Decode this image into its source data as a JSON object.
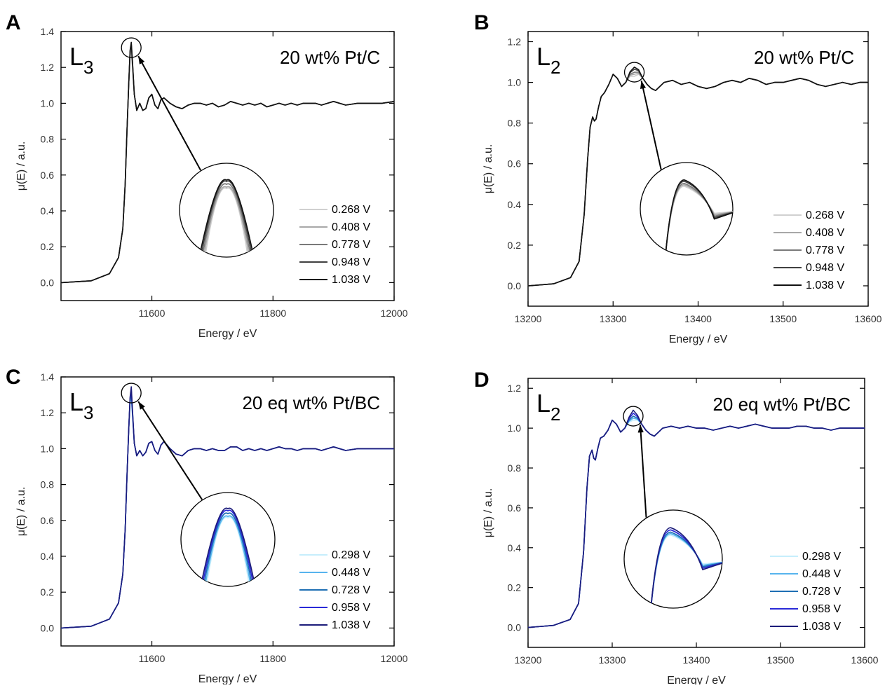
{
  "chart_data": [
    {
      "panel": "A",
      "type": "line",
      "edge_label": "L3",
      "sample_label": "20 wt% Pt/C",
      "xlabel": "Energy / eV",
      "ylabel": "μ(E) / a.u.",
      "xlim": [
        11450,
        12000
      ],
      "ylim": [
        -0.1,
        1.4
      ],
      "xticks": [
        11600,
        11800,
        12000
      ],
      "yticks": [
        0.0,
        0.2,
        0.4,
        0.6,
        0.8,
        1.0,
        1.2,
        1.4
      ],
      "legend_position": "lower-right",
      "series": [
        {
          "name": "0.268 V",
          "color": "#d0d0d0"
        },
        {
          "name": "0.408 V",
          "color": "#a8a8a8"
        },
        {
          "name": "0.778 V",
          "color": "#7a7a7a"
        },
        {
          "name": "0.948 V",
          "color": "#404040"
        },
        {
          "name": "1.038 V",
          "color": "#111111"
        }
      ],
      "x": [
        11450,
        11500,
        11530,
        11545,
        11552,
        11556,
        11559,
        11562,
        11564,
        11566,
        11568,
        11571,
        11575,
        11580,
        11585,
        11590,
        11595,
        11600,
        11605,
        11610,
        11615,
        11620,
        11630,
        11640,
        11650,
        11660,
        11670,
        11680,
        11690,
        11700,
        11710,
        11720,
        11730,
        11740,
        11750,
        11760,
        11770,
        11780,
        11790,
        11800,
        11810,
        11820,
        11830,
        11840,
        11850,
        11860,
        11870,
        11880,
        11890,
        11900,
        11920,
        11940,
        11960,
        11980,
        12000
      ],
      "y": [
        0.0,
        0.01,
        0.05,
        0.14,
        0.3,
        0.55,
        0.85,
        1.12,
        1.28,
        1.31,
        1.22,
        1.05,
        0.96,
        1.0,
        0.96,
        0.97,
        1.03,
        1.05,
        0.99,
        0.97,
        1.02,
        1.03,
        1.0,
        0.98,
        0.97,
        0.99,
        1.0,
        1.0,
        0.99,
        1.0,
        0.98,
        0.99,
        1.01,
        1.0,
        0.99,
        1.0,
        0.99,
        1.0,
        0.98,
        0.99,
        1.0,
        0.99,
        1.0,
        0.99,
        1.0,
        1.0,
        1.0,
        0.99,
        1.0,
        1.01,
        0.99,
        1.0,
        1.0,
        1.0,
        1.01
      ],
      "peak_spread": [
        -0.03,
        -0.02,
        0.0,
        0.02,
        0.03
      ],
      "inset": "zoomed view of white-line peak"
    },
    {
      "panel": "B",
      "type": "line",
      "edge_label": "L2",
      "sample_label": "20 wt% Pt/C",
      "xlabel": "Energy / eV",
      "ylabel": "μ(E) / a.u.",
      "xlim": [
        13200,
        13600
      ],
      "ylim": [
        -0.1,
        1.25
      ],
      "xticks": [
        13200,
        13300,
        13400,
        13500,
        13600
      ],
      "yticks": [
        0.0,
        0.2,
        0.4,
        0.6,
        0.8,
        1.0,
        1.2
      ],
      "legend_position": "lower-right",
      "series": [
        {
          "name": "0.268 V",
          "color": "#d0d0d0"
        },
        {
          "name": "0.408 V",
          "color": "#a8a8a8"
        },
        {
          "name": "0.778 V",
          "color": "#7a7a7a"
        },
        {
          "name": "0.948 V",
          "color": "#404040"
        },
        {
          "name": "1.038 V",
          "color": "#111111"
        }
      ],
      "x": [
        13200,
        13230,
        13250,
        13260,
        13266,
        13270,
        13273,
        13276,
        13278,
        13280,
        13283,
        13286,
        13290,
        13295,
        13300,
        13305,
        13310,
        13315,
        13320,
        13325,
        13330,
        13335,
        13340,
        13345,
        13350,
        13355,
        13360,
        13370,
        13380,
        13390,
        13400,
        13410,
        13420,
        13430,
        13440,
        13450,
        13460,
        13470,
        13480,
        13490,
        13500,
        13510,
        13520,
        13530,
        13540,
        13550,
        13560,
        13570,
        13580,
        13590,
        13600
      ],
      "y": [
        0.0,
        0.01,
        0.04,
        0.12,
        0.35,
        0.62,
        0.78,
        0.83,
        0.81,
        0.82,
        0.88,
        0.93,
        0.95,
        0.99,
        1.04,
        1.02,
        0.98,
        1.0,
        1.04,
        1.05,
        1.05,
        1.02,
        0.99,
        0.97,
        0.96,
        0.98,
        1.0,
        1.01,
        0.99,
        1.0,
        0.98,
        0.97,
        0.98,
        1.0,
        1.01,
        1.0,
        1.02,
        1.01,
        0.99,
        1.0,
        1.0,
        1.01,
        1.02,
        1.01,
        0.99,
        0.98,
        0.99,
        1.0,
        0.99,
        1.0,
        1.0
      ],
      "peak_spread": [
        -0.02,
        -0.01,
        0.0,
        0.015,
        0.025
      ],
      "inset": "zoomed view of white-line peak"
    },
    {
      "panel": "C",
      "type": "line",
      "edge_label": "L3",
      "sample_label": "20 eq wt% Pt/BC",
      "xlabel": "Energy / eV",
      "ylabel": "μ(E) / a.u.",
      "xlim": [
        11450,
        12000
      ],
      "ylim": [
        -0.1,
        1.4
      ],
      "xticks": [
        11600,
        11800,
        12000
      ],
      "yticks": [
        0.0,
        0.2,
        0.4,
        0.6,
        0.8,
        1.0,
        1.2,
        1.4
      ],
      "legend_position": "lower-right",
      "series": [
        {
          "name": "0.298 V",
          "color": "#c6eefc"
        },
        {
          "name": "0.448 V",
          "color": "#57b4ee"
        },
        {
          "name": "0.728 V",
          "color": "#1e6fb4"
        },
        {
          "name": "0.958 V",
          "color": "#2a2ad8"
        },
        {
          "name": "1.038 V",
          "color": "#1c1c7a"
        }
      ],
      "x": [
        11450,
        11500,
        11530,
        11545,
        11552,
        11556,
        11559,
        11562,
        11564,
        11566,
        11568,
        11571,
        11575,
        11580,
        11585,
        11590,
        11595,
        11600,
        11605,
        11610,
        11615,
        11620,
        11630,
        11640,
        11650,
        11660,
        11670,
        11680,
        11690,
        11700,
        11710,
        11720,
        11730,
        11740,
        11750,
        11760,
        11770,
        11780,
        11790,
        11800,
        11810,
        11820,
        11830,
        11840,
        11850,
        11860,
        11870,
        11880,
        11890,
        11900,
        11920,
        11940,
        11960,
        11980,
        12000
      ],
      "y": [
        0.0,
        0.01,
        0.05,
        0.14,
        0.3,
        0.55,
        0.85,
        1.12,
        1.27,
        1.31,
        1.2,
        1.03,
        0.96,
        0.99,
        0.96,
        0.98,
        1.03,
        1.04,
        0.99,
        0.97,
        1.02,
        1.04,
        1.0,
        0.97,
        0.96,
        0.99,
        1.0,
        1.0,
        0.99,
        1.0,
        0.99,
        0.99,
        1.01,
        1.01,
        0.99,
        1.0,
        0.99,
        1.0,
        0.99,
        1.0,
        1.01,
        1.0,
        1.0,
        0.99,
        1.0,
        1.0,
        1.0,
        0.99,
        1.0,
        1.01,
        0.99,
        1.0,
        1.0,
        1.0,
        1.0
      ],
      "peak_spread": [
        -0.03,
        -0.02,
        0.0,
        0.02,
        0.035
      ],
      "inset": "zoomed view of white-line peak"
    },
    {
      "panel": "D",
      "type": "line",
      "edge_label": "L2",
      "sample_label": "20 eq wt% Pt/BC",
      "xlabel": "Energy / eV",
      "ylabel": "μ(E) / a.u.",
      "xlim": [
        13200,
        13600
      ],
      "ylim": [
        -0.1,
        1.25
      ],
      "xticks": [
        13200,
        13300,
        13400,
        13500,
        13600
      ],
      "yticks": [
        0.0,
        0.2,
        0.4,
        0.6,
        0.8,
        1.0,
        1.2
      ],
      "legend_position": "lower-right",
      "series": [
        {
          "name": "0.298 V",
          "color": "#c6eefc"
        },
        {
          "name": "0.448 V",
          "color": "#57b4ee"
        },
        {
          "name": "0.728 V",
          "color": "#1e6fb4"
        },
        {
          "name": "0.958 V",
          "color": "#2a2ad8"
        },
        {
          "name": "1.038 V",
          "color": "#1c1c7a"
        }
      ],
      "x": [
        13200,
        13230,
        13250,
        13260,
        13266,
        13270,
        13273,
        13276,
        13278,
        13280,
        13283,
        13286,
        13290,
        13295,
        13300,
        13305,
        13310,
        13315,
        13320,
        13325,
        13330,
        13335,
        13340,
        13345,
        13350,
        13355,
        13360,
        13370,
        13380,
        13390,
        13400,
        13410,
        13420,
        13430,
        13440,
        13450,
        13460,
        13470,
        13480,
        13490,
        13500,
        13510,
        13520,
        13530,
        13540,
        13550,
        13560,
        13570,
        13580,
        13590,
        13600
      ],
      "y": [
        0.0,
        0.01,
        0.04,
        0.12,
        0.38,
        0.7,
        0.86,
        0.89,
        0.85,
        0.84,
        0.9,
        0.95,
        0.96,
        0.99,
        1.04,
        1.02,
        0.98,
        1.0,
        1.04,
        1.06,
        1.05,
        1.02,
        0.99,
        0.97,
        0.96,
        0.98,
        1.0,
        1.01,
        1.0,
        1.01,
        1.0,
        1.0,
        0.99,
        1.0,
        1.01,
        1.0,
        1.01,
        1.02,
        1.01,
        1.0,
        1.0,
        1.0,
        1.01,
        1.01,
        1.0,
        1.0,
        0.99,
        1.0,
        1.0,
        1.0,
        1.0
      ],
      "peak_spread": [
        -0.02,
        -0.01,
        0.0,
        0.015,
        0.03
      ],
      "inset": "zoomed view of white-line peak"
    }
  ]
}
